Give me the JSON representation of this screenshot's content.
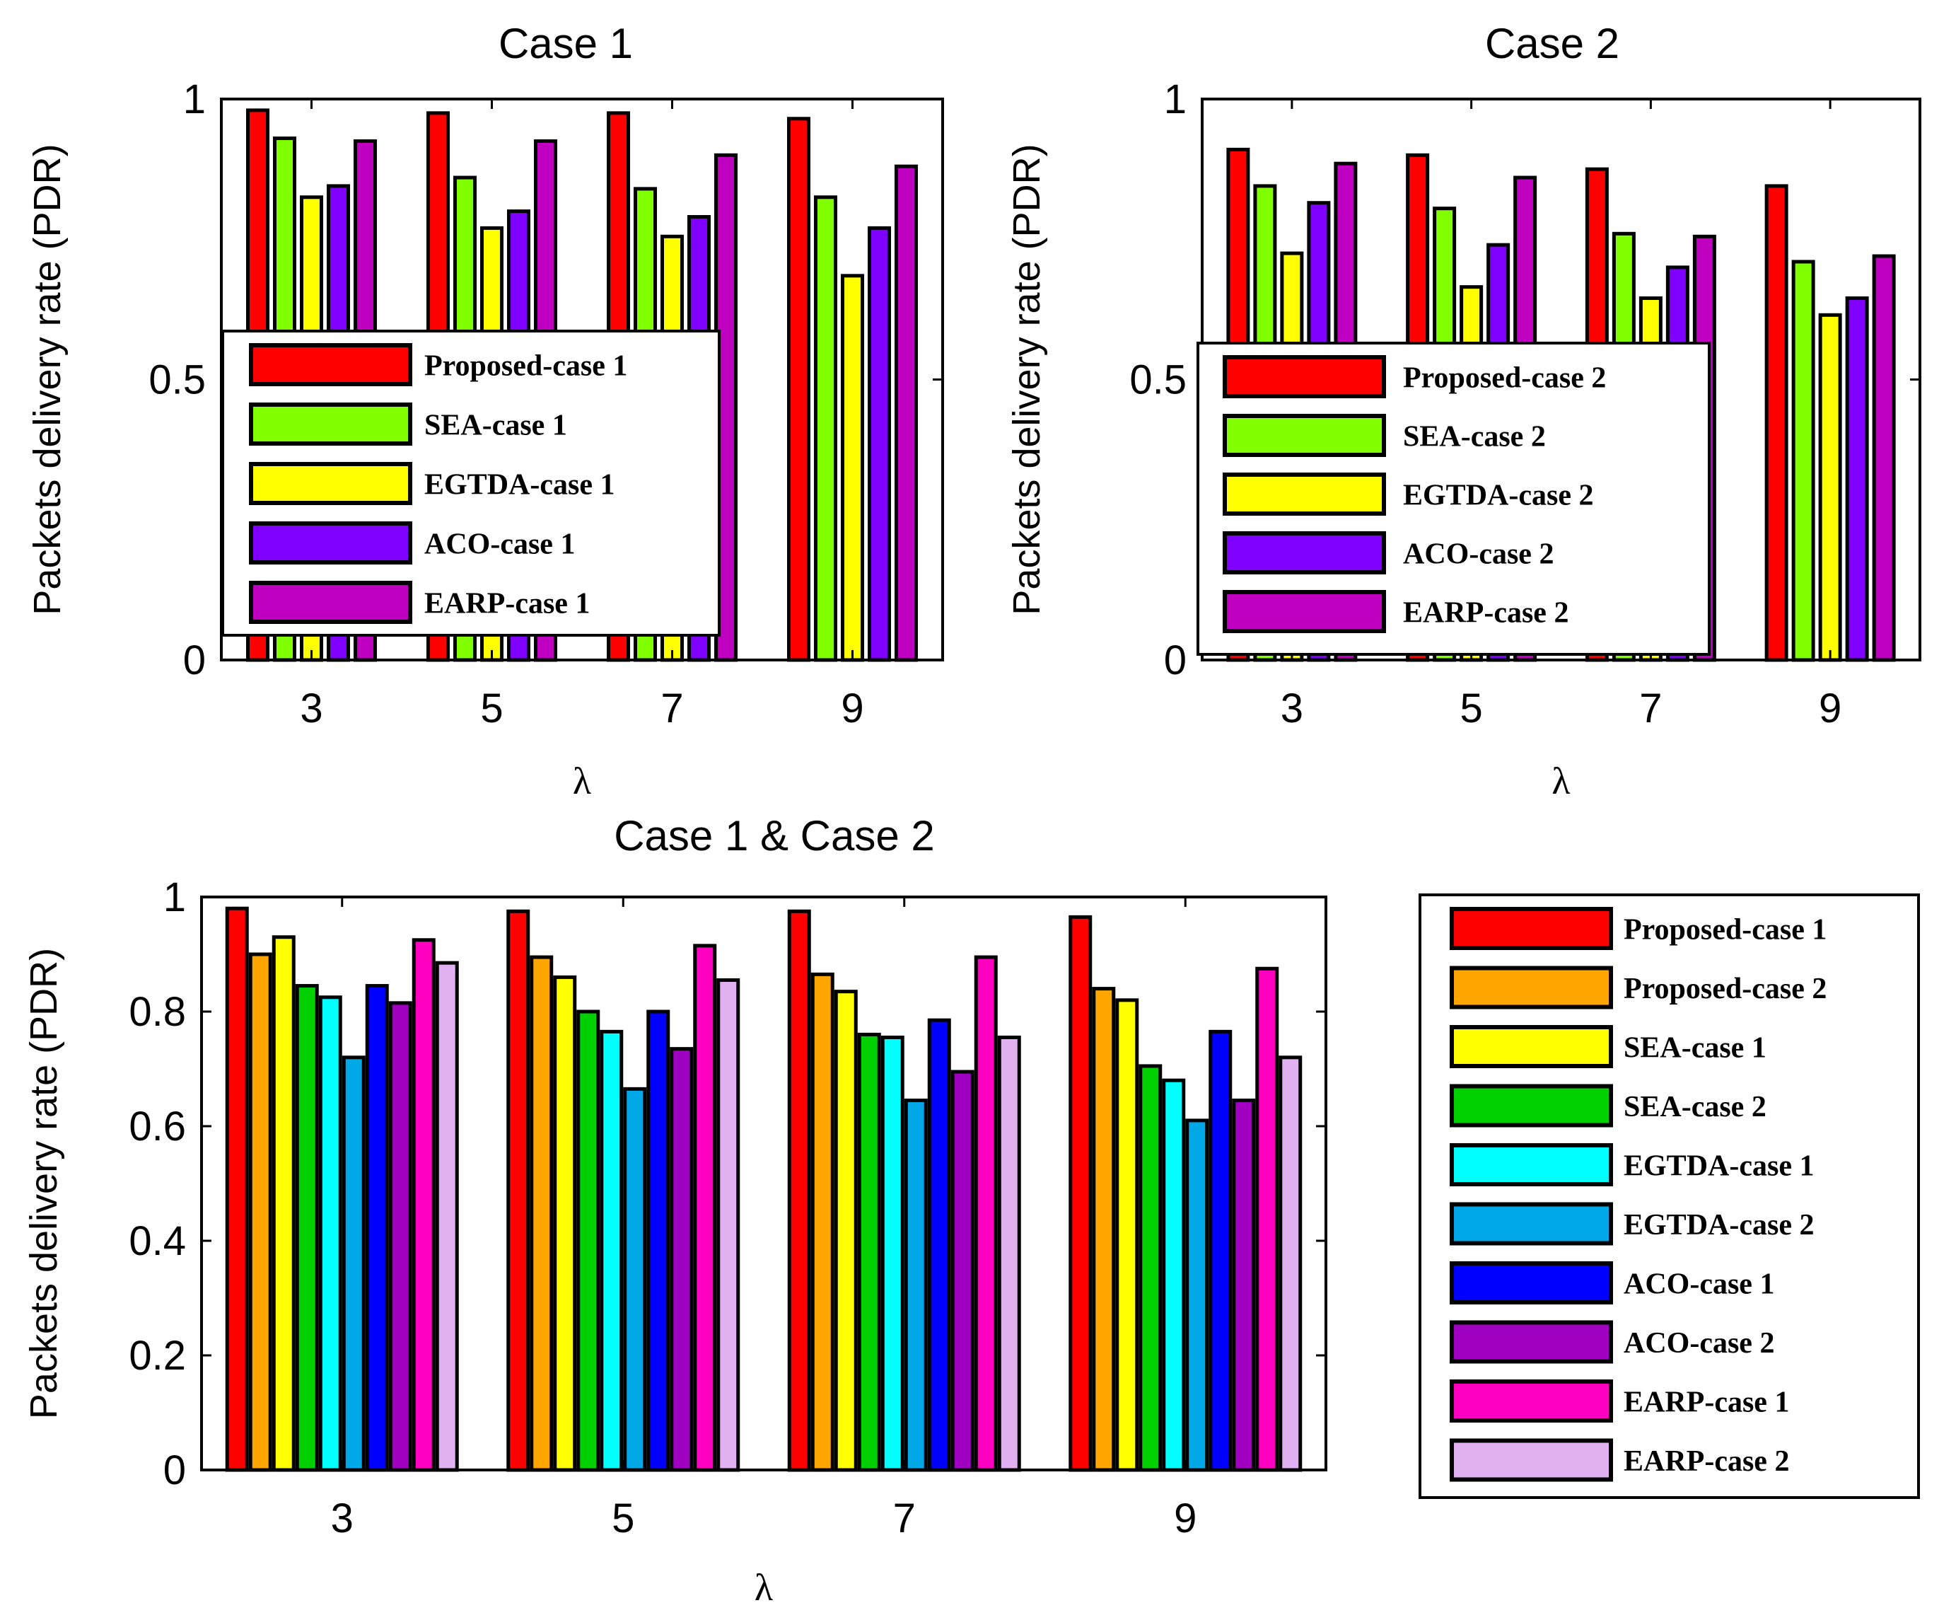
{
  "chart_data": [
    {
      "id": "c1",
      "type": "bar",
      "title": "Case 1",
      "xlabel": "λ",
      "ylabel": "Packets delivery rate (PDR)",
      "categories": [
        "3",
        "5",
        "7",
        "9"
      ],
      "ylim": [
        0,
        1
      ],
      "yticks": [
        "0",
        "0.5",
        "1"
      ],
      "series": [
        {
          "name": "Proposed-case 1",
          "color": "#ff0000",
          "values": [
            0.98,
            0.975,
            0.975,
            0.965
          ]
        },
        {
          "name": "SEA-case 1",
          "color": "#80ff00",
          "values": [
            0.93,
            0.86,
            0.84,
            0.825
          ]
        },
        {
          "name": "EGTDA-case 1",
          "color": "#ffff00",
          "values": [
            0.825,
            0.77,
            0.755,
            0.685
          ]
        },
        {
          "name": "ACO-case 1",
          "color": "#8000ff",
          "values": [
            0.845,
            0.8,
            0.79,
            0.77
          ]
        },
        {
          "name": "EARP-case 1",
          "color": "#c000c0",
          "values": [
            0.925,
            0.925,
            0.9,
            0.88
          ]
        }
      ]
    },
    {
      "id": "c2",
      "type": "bar",
      "title": "Case 2",
      "xlabel": "λ",
      "ylabel": "Packets delivery rate (PDR)",
      "categories": [
        "3",
        "5",
        "7",
        "9"
      ],
      "ylim": [
        0,
        1
      ],
      "yticks": [
        "0",
        "0.5",
        "1"
      ],
      "series": [
        {
          "name": "Proposed-case 2",
          "color": "#ff0000",
          "values": [
            0.91,
            0.9,
            0.875,
            0.845
          ]
        },
        {
          "name": "SEA-case 2",
          "color": "#80ff00",
          "values": [
            0.845,
            0.805,
            0.76,
            0.71
          ]
        },
        {
          "name": "EGTDA-case 2",
          "color": "#ffff00",
          "values": [
            0.725,
            0.665,
            0.645,
            0.615
          ]
        },
        {
          "name": "ACO-case 2",
          "color": "#8000ff",
          "values": [
            0.815,
            0.74,
            0.7,
            0.645
          ]
        },
        {
          "name": "EARP-case 2",
          "color": "#c000c0",
          "values": [
            0.885,
            0.86,
            0.755,
            0.72
          ]
        }
      ]
    },
    {
      "id": "c3",
      "type": "bar",
      "title": "Case 1 & Case 2",
      "xlabel": "λ",
      "ylabel": "Packets delivery rate (PDR)",
      "categories": [
        "3",
        "5",
        "7",
        "9"
      ],
      "ylim": [
        0,
        1
      ],
      "yticks": [
        "0",
        "0.2",
        "0.4",
        "0.6",
        "0.8",
        "1"
      ],
      "series": [
        {
          "name": "Proposed-case 1",
          "color": "#ff0000",
          "values": [
            0.98,
            0.975,
            0.975,
            0.965
          ]
        },
        {
          "name": "Proposed-case 2",
          "color": "#ffa500",
          "values": [
            0.9,
            0.895,
            0.865,
            0.84
          ]
        },
        {
          "name": "SEA-case 1",
          "color": "#ffff00",
          "values": [
            0.93,
            0.86,
            0.835,
            0.82
          ]
        },
        {
          "name": "SEA-case 2",
          "color": "#00d000",
          "values": [
            0.845,
            0.8,
            0.76,
            0.705
          ]
        },
        {
          "name": "EGTDA-case 1",
          "color": "#00ffff",
          "values": [
            0.825,
            0.765,
            0.755,
            0.68
          ]
        },
        {
          "name": "EGTDA-case 2",
          "color": "#00a8e8",
          "values": [
            0.72,
            0.665,
            0.645,
            0.61
          ]
        },
        {
          "name": "ACO-case 1",
          "color": "#0000ff",
          "values": [
            0.845,
            0.8,
            0.785,
            0.765
          ]
        },
        {
          "name": "ACO-case 2",
          "color": "#a000c0",
          "values": [
            0.815,
            0.735,
            0.695,
            0.645
          ]
        },
        {
          "name": "EARP-case 1",
          "color": "#ff00c0",
          "values": [
            0.925,
            0.915,
            0.895,
            0.875
          ]
        },
        {
          "name": "EARP-case 2",
          "color": "#e0b0f0",
          "values": [
            0.885,
            0.855,
            0.755,
            0.72
          ]
        }
      ]
    }
  ]
}
